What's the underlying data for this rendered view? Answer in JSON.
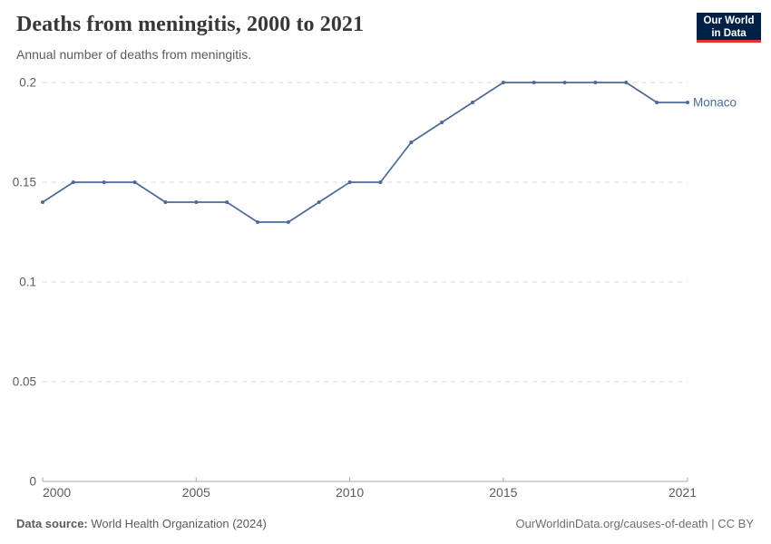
{
  "header": {
    "title": "Deaths from meningitis, 2000 to 2021",
    "subtitle": "Annual number of deaths from meningitis.",
    "logo": {
      "line1": "Our World",
      "line2": "in Data"
    }
  },
  "chart_data": {
    "type": "line",
    "title": "Deaths from meningitis, 2000 to 2021",
    "subtitle": "Annual number of deaths from meningitis.",
    "x": [
      2000,
      2001,
      2002,
      2003,
      2004,
      2005,
      2006,
      2007,
      2008,
      2009,
      2010,
      2011,
      2012,
      2013,
      2014,
      2015,
      2016,
      2017,
      2018,
      2019,
      2020,
      2021
    ],
    "series": [
      {
        "name": "Monaco",
        "color": "#4c6a9c",
        "values": [
          0.14,
          0.15,
          0.15,
          0.15,
          0.14,
          0.14,
          0.14,
          0.13,
          0.13,
          0.14,
          0.15,
          0.15,
          0.17,
          0.18,
          0.19,
          0.2,
          0.2,
          0.2,
          0.2,
          0.2,
          0.19,
          0.19
        ]
      }
    ],
    "xlabel": "",
    "ylabel": "",
    "xlim": [
      2000,
      2021
    ],
    "ylim": [
      0,
      0.2
    ],
    "xticks": [
      2000,
      2005,
      2010,
      2015,
      2021
    ],
    "xtick_labels": [
      "2000",
      "2005",
      "2010",
      "2015",
      "2021"
    ],
    "yticks": [
      0,
      0.05,
      0.1,
      0.15,
      0.2
    ],
    "ytick_labels": [
      "0",
      "0.05",
      "0.1",
      "0.15",
      "0.2"
    ],
    "grid": "horizontal-dashed",
    "legend_position": "end-of-line"
  },
  "footer": {
    "source_label": "Data source:",
    "source_text": " World Health Organization (2024)",
    "credit": "OurWorldinData.org/causes-of-death | CC BY"
  },
  "colors": {
    "line": "#4c6a9c",
    "grid": "#d9d9d9",
    "axis": "#a9a9a9",
    "tick_text": "#5b5b5b",
    "title_text": "#383636",
    "logo_bg": "#002147",
    "logo_accent": "#e0342c"
  }
}
